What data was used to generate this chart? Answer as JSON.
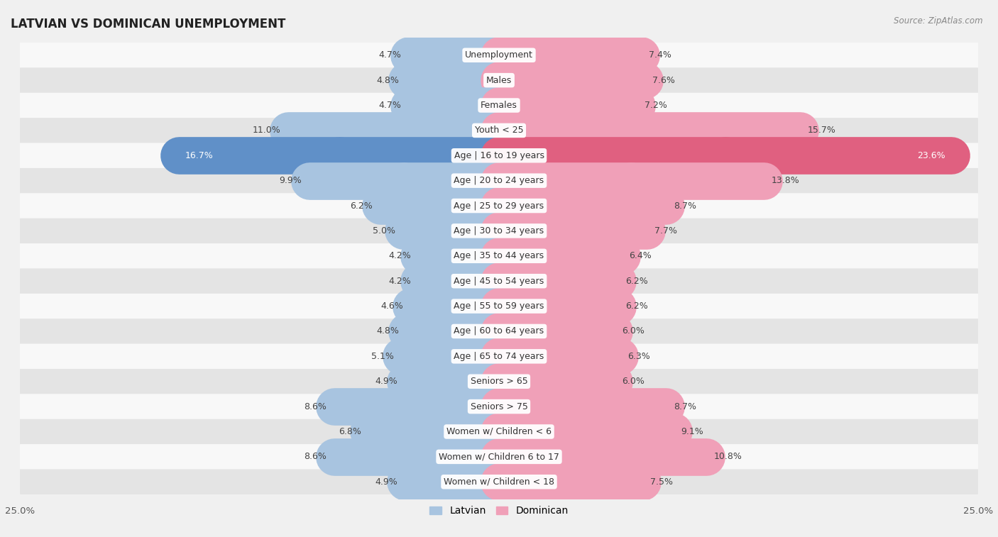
{
  "title": "LATVIAN VS DOMINICAN UNEMPLOYMENT",
  "source": "Source: ZipAtlas.com",
  "categories": [
    "Unemployment",
    "Males",
    "Females",
    "Youth < 25",
    "Age | 16 to 19 years",
    "Age | 20 to 24 years",
    "Age | 25 to 29 years",
    "Age | 30 to 34 years",
    "Age | 35 to 44 years",
    "Age | 45 to 54 years",
    "Age | 55 to 59 years",
    "Age | 60 to 64 years",
    "Age | 65 to 74 years",
    "Seniors > 65",
    "Seniors > 75",
    "Women w/ Children < 6",
    "Women w/ Children 6 to 17",
    "Women w/ Children < 18"
  ],
  "latvian": [
    4.7,
    4.8,
    4.7,
    11.0,
    16.7,
    9.9,
    6.2,
    5.0,
    4.2,
    4.2,
    4.6,
    4.8,
    5.1,
    4.9,
    8.6,
    6.8,
    8.6,
    4.9
  ],
  "dominican": [
    7.4,
    7.6,
    7.2,
    15.7,
    23.6,
    13.8,
    8.7,
    7.7,
    6.4,
    6.2,
    6.2,
    6.0,
    6.3,
    6.0,
    8.7,
    9.1,
    10.8,
    7.5
  ],
  "latvian_color": "#a8c4e0",
  "dominican_color": "#f0a0b8",
  "latvian_highlight_color": "#6090c8",
  "dominican_highlight_color": "#e06080",
  "background_color": "#f0f0f0",
  "row_light_color": "#f8f8f8",
  "row_dark_color": "#e4e4e4",
  "axis_max": 25.0,
  "bar_height": 0.62,
  "label_fontsize": 9.0,
  "category_fontsize": 9.0,
  "title_fontsize": 12,
  "highlight_indices": [
    4
  ]
}
